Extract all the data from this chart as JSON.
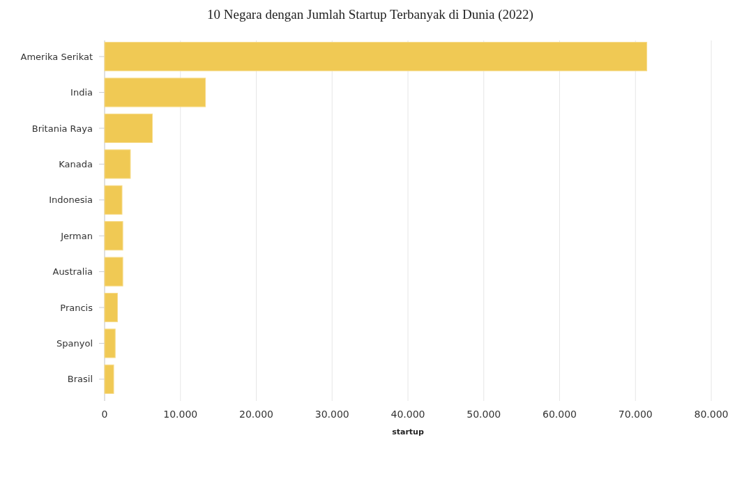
{
  "chart_data": {
    "type": "bar",
    "orientation": "horizontal",
    "title": "10 Negara dengan Jumlah Startup Terbanyak di Dunia (2022)",
    "xlabel": "startup",
    "categories": [
      "Amerika Serikat",
      "India",
      "Britania Raya",
      "Kanada",
      "Indonesia",
      "Jerman",
      "Australia",
      "Prancis",
      "Spanyol",
      "Brasil"
    ],
    "values": [
      71500,
      13300,
      6300,
      3400,
      2300,
      2400,
      2400,
      1700,
      1400,
      1200
    ],
    "color": "#f0c954",
    "xlim": [
      0,
      80000
    ],
    "xticks": [
      0,
      {
        "value": 10000,
        "label": "10.000"
      },
      {
        "value": 20000,
        "label": "20.000"
      },
      {
        "value": 30000,
        "label": "30.000"
      },
      {
        "value": 40000,
        "label": "40.000"
      },
      {
        "value": 50000,
        "label": "50.000"
      },
      {
        "value": 60000,
        "label": "60.000"
      },
      {
        "value": 70000,
        "label": "70.000"
      },
      {
        "value": 80000,
        "label": "80.000"
      }
    ],
    "grid": "x"
  }
}
